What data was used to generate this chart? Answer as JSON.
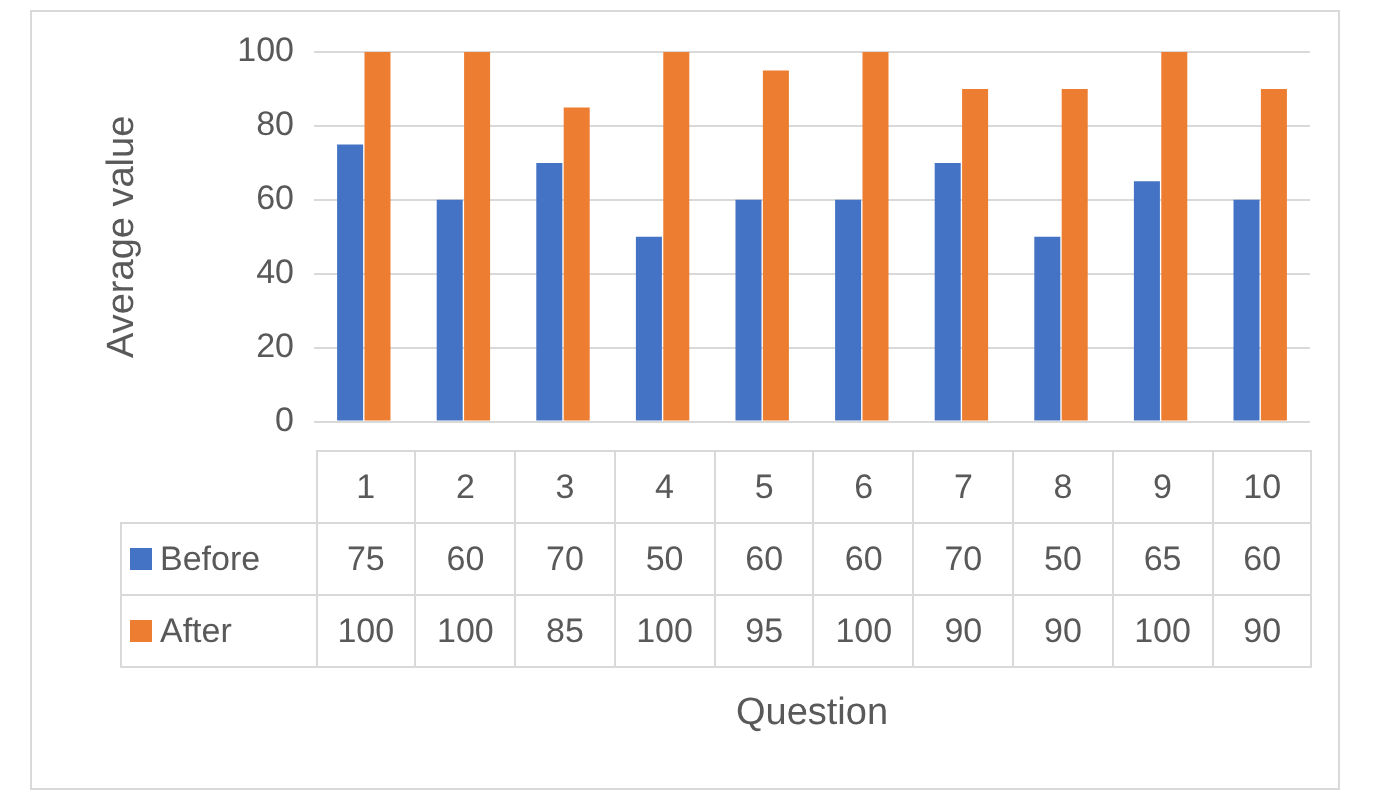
{
  "chart_data": {
    "type": "bar",
    "xlabel": "Question",
    "ylabel": "Average value",
    "categories": [
      "1",
      "2",
      "3",
      "4",
      "5",
      "6",
      "7",
      "8",
      "9",
      "10"
    ],
    "series": [
      {
        "name": "Before",
        "color": "#4472c4",
        "values": [
          75,
          60,
          70,
          50,
          60,
          60,
          70,
          50,
          65,
          60
        ]
      },
      {
        "name": "After",
        "color": "#ed7d31",
        "values": [
          100,
          100,
          85,
          100,
          95,
          100,
          90,
          90,
          100,
          90
        ]
      }
    ],
    "ylim": [
      0,
      100
    ],
    "yticks": [
      0,
      20,
      40,
      60,
      80,
      100
    ],
    "grid": "y",
    "legend": "bottom",
    "data_labels": true
  }
}
